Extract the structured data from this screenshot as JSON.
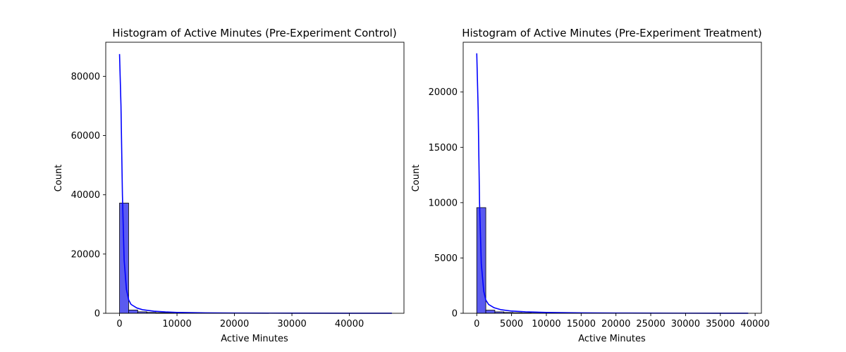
{
  "colors": {
    "bar_fill": "#5a5af0",
    "bar_edge": "#000000",
    "kde_line": "#0000ff"
  },
  "chart_data": [
    {
      "type": "bar",
      "title": "Histogram of Active Minutes (Pre-Experiment Control)",
      "xlabel": "Active Minutes",
      "ylabel": "Count",
      "xlim": [
        -2400,
        49500
      ],
      "ylim": [
        0,
        91500
      ],
      "xticks": [
        0,
        10000,
        20000,
        30000,
        40000
      ],
      "xtick_labels": [
        "0",
        "10000",
        "20000",
        "30000",
        "40000"
      ],
      "yticks": [
        0,
        20000,
        40000,
        60000,
        80000
      ],
      "ytick_labels": [
        "0",
        "20000",
        "40000",
        "60000",
        "80000"
      ],
      "bin_width": 1580,
      "bin_start": 0,
      "counts": [
        37200,
        1100,
        500,
        300,
        200,
        150,
        100,
        80,
        60,
        50,
        40,
        30,
        25,
        20,
        15,
        12,
        10,
        8,
        6,
        5,
        4,
        3,
        3,
        2,
        2,
        2,
        1,
        1,
        1,
        1
      ],
      "kde": {
        "x": [
          0,
          250,
          500,
          800,
          1200,
          1600,
          2000,
          3000,
          4000,
          6000,
          8000,
          10000,
          15000,
          20000,
          30000,
          40000,
          47400
        ],
        "y": [
          87500,
          70000,
          40000,
          18000,
          8000,
          4500,
          3000,
          1800,
          1200,
          700,
          450,
          300,
          150,
          80,
          40,
          20,
          10
        ]
      },
      "grid": false
    },
    {
      "type": "bar",
      "title": "Histogram of Active Minutes (Pre-Experiment Treatment)",
      "xlabel": "Active Minutes",
      "ylabel": "Count",
      "xlim": [
        -1950,
        40900
      ],
      "ylim": [
        0,
        24500
      ],
      "xticks": [
        0,
        5000,
        10000,
        15000,
        20000,
        25000,
        30000,
        35000,
        40000
      ],
      "xtick_labels": [
        "0",
        "5000",
        "10000",
        "15000",
        "20000",
        "25000",
        "30000",
        "35000",
        "40000"
      ],
      "yticks": [
        0,
        5000,
        10000,
        15000,
        20000
      ],
      "ytick_labels": [
        "0",
        "5000",
        "10000",
        "15000",
        "20000"
      ],
      "bin_width": 1300,
      "bin_start": 0,
      "counts": [
        9550,
        280,
        130,
        75,
        50,
        35,
        25,
        18,
        14,
        11,
        9,
        7,
        6,
        5,
        4,
        3,
        3,
        2,
        2,
        2,
        1,
        1,
        1,
        1,
        1,
        1,
        1,
        1,
        1,
        1
      ],
      "kde": {
        "x": [
          0,
          200,
          400,
          650,
          1000,
          1300,
          1700,
          2500,
          3500,
          5000,
          7000,
          10000,
          15000,
          20000,
          30000,
          39000
        ],
        "y": [
          23500,
          18500,
          10000,
          4500,
          2000,
          1200,
          800,
          500,
          320,
          200,
          130,
          80,
          40,
          20,
          8,
          3
        ]
      },
      "grid": false
    }
  ]
}
